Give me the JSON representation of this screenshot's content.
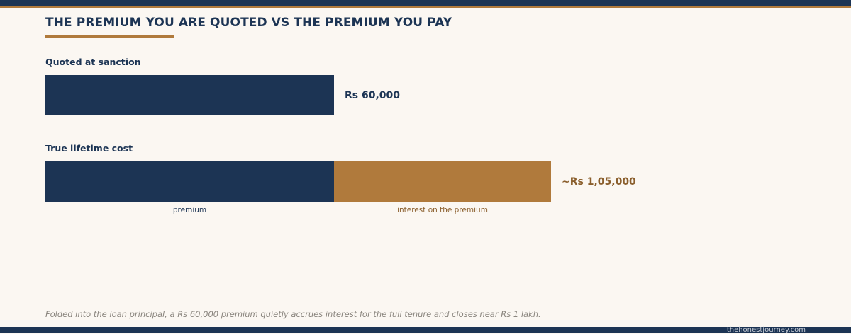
{
  "header": {
    "title": "THE PREMIUM YOU ARE QUOTED VS THE PREMIUM YOU PAY"
  },
  "colors": {
    "navy": "#1c3454",
    "bronze": "#b07a3c",
    "background": "#fbf7f2",
    "footnote": "#8a857e"
  },
  "chart_data": {
    "type": "bar",
    "orientation": "horizontal",
    "stacked": true,
    "unit": "Rs",
    "xlim": [
      0,
      105000
    ],
    "grid": false,
    "legend": "none",
    "rows": [
      {
        "label": "Quoted at sanction",
        "total": 60000,
        "value_label": "Rs 60,000",
        "segments": [
          {
            "name": "",
            "value": 60000,
            "color": "#1c3454"
          }
        ]
      },
      {
        "label": "True lifetime cost",
        "total": 105000,
        "value_label": "~Rs 1,05,000",
        "segments": [
          {
            "name": "premium",
            "value": 60000,
            "color": "#1c3454"
          },
          {
            "name": "interest on the premium",
            "value": 45000,
            "color": "#b07a3c"
          }
        ]
      }
    ]
  },
  "footnote": "Folded into the loan principal, a Rs 60,000 premium quietly accrues interest for the full tenure and closes near Rs 1 lakh.",
  "footer": {
    "site": "thehonestjourney.com"
  }
}
